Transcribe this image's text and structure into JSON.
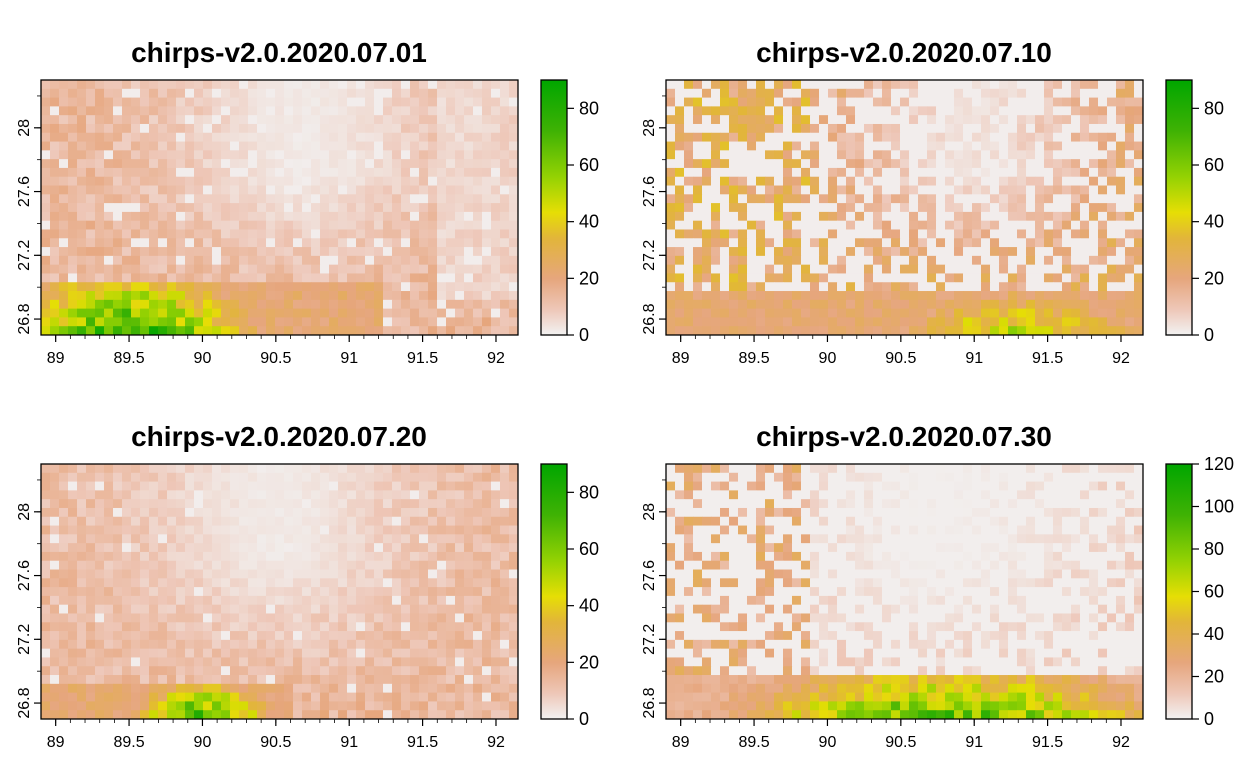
{
  "chart_data": [
    {
      "type": "heatmap",
      "title": "chirps-v2.0.2020.07.01",
      "xlabel": "",
      "ylabel": "",
      "xlim": [
        88.9,
        92.15
      ],
      "ylim": [
        26.7,
        28.3
      ],
      "x_ticks": [
        "89",
        "89.5",
        "90",
        "90.5",
        "91",
        "91.5",
        "92"
      ],
      "y_ticks": [
        "26.8",
        "27.2",
        "27.6",
        "28"
      ],
      "colorbar": {
        "min": 0,
        "max": 90,
        "ticks": [
          "0",
          "20",
          "40",
          "60",
          "80"
        ]
      },
      "pattern": {
        "south_band_max": 84,
        "south_band_center_x": 89.5,
        "south_band_spread": 0.8,
        "south_band_east_limit": 91.2,
        "north_level": 14,
        "north_dry_center_x": 90.7,
        "band_top_lat": 27.05,
        "se_dry_from_x": 91.6,
        "dry_fraction": 0.1
      }
    },
    {
      "type": "heatmap",
      "title": "chirps-v2.0.2020.07.10",
      "xlabel": "",
      "ylabel": "",
      "xlim": [
        88.9,
        92.15
      ],
      "ylim": [
        26.7,
        28.3
      ],
      "x_ticks": [
        "89",
        "89.5",
        "90",
        "90.5",
        "91",
        "91.5",
        "92"
      ],
      "y_ticks": [
        "26.8",
        "27.2",
        "27.6",
        "28"
      ],
      "colorbar": {
        "min": 0,
        "max": 90,
        "ticks": [
          "0",
          "20",
          "40",
          "60",
          "80"
        ]
      },
      "pattern": {
        "south_band_max": 55,
        "south_band_center_x": 91.3,
        "south_band_spread": 0.9,
        "south_band_east_limit": 92.15,
        "north_level": 25,
        "north_dry_center_x": 91.0,
        "band_top_lat": 26.95,
        "se_dry_from_x": 93.0,
        "dry_fraction": 0.45,
        "northwest_wet": true
      }
    },
    {
      "type": "heatmap",
      "title": "chirps-v2.0.2020.07.20",
      "xlabel": "",
      "ylabel": "",
      "xlim": [
        88.9,
        92.15
      ],
      "ylim": [
        26.7,
        28.3
      ],
      "x_ticks": [
        "89",
        "89.5",
        "90",
        "90.5",
        "91",
        "91.5",
        "92"
      ],
      "y_ticks": [
        "26.8",
        "27.2",
        "27.6",
        "28"
      ],
      "colorbar": {
        "min": 0,
        "max": 90,
        "ticks": [
          "0",
          "20",
          "40",
          "60",
          "80"
        ]
      },
      "pattern": {
        "south_band_max": 82,
        "south_band_center_x": 90.0,
        "south_band_spread": 0.45,
        "south_band_east_limit": 90.6,
        "north_level": 13,
        "north_dry_center_x": 90.5,
        "band_top_lat": 26.9,
        "se_dry_from_x": 93.0,
        "dry_fraction": 0.05
      }
    },
    {
      "type": "heatmap",
      "title": "chirps-v2.0.2020.07.30",
      "xlabel": "",
      "ylabel": "",
      "xlim": [
        88.9,
        92.15
      ],
      "ylim": [
        26.7,
        28.3
      ],
      "x_ticks": [
        "89",
        "89.5",
        "90",
        "90.5",
        "91",
        "91.5",
        "92"
      ],
      "y_ticks": [
        "26.8",
        "27.2",
        "27.6",
        "28"
      ],
      "colorbar": {
        "min": 0,
        "max": 120,
        "ticks": [
          "0",
          "20",
          "40",
          "60",
          "80",
          "100",
          "120"
        ]
      },
      "pattern": {
        "south_band_max": 100,
        "south_band_center_x": 90.8,
        "south_band_spread": 1.4,
        "south_band_east_limit": 92.15,
        "north_level": 10,
        "north_dry_center_x": 90.8,
        "band_top_lat": 27.0,
        "se_dry_from_x": 93.0,
        "dry_fraction": 0.6,
        "northwest_wet": true
      }
    }
  ]
}
